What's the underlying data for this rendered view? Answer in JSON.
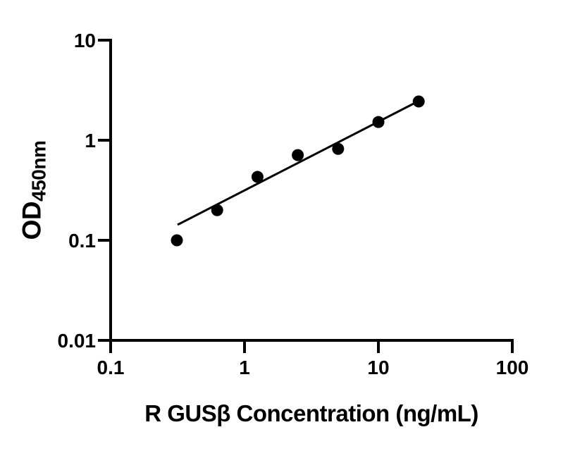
{
  "chart_data": {
    "type": "scatter",
    "title": "",
    "xlabel": "R GUSβ Concentration (ng/mL)",
    "ylabel_main": "OD",
    "ylabel_sub": "450nm",
    "x_scale": "log",
    "y_scale": "log",
    "xlim": [
      0.1,
      100
    ],
    "ylim": [
      0.01,
      10
    ],
    "x_ticks": [
      0.1,
      1,
      10,
      100
    ],
    "x_tick_labels": [
      "0.1",
      "1",
      "10",
      "100"
    ],
    "y_ticks": [
      10,
      1,
      0.1,
      0.01
    ],
    "y_tick_labels": [
      "10",
      "1",
      "0.1",
      "0.01"
    ],
    "grid": false,
    "legend": "none",
    "colors": {
      "foreground": "#000000",
      "background": "#ffffff"
    },
    "series": [
      {
        "name": "standard-curve-points",
        "marker": "filled-circle",
        "color": "#000000",
        "points": [
          {
            "x": 0.3125,
            "y": 0.1
          },
          {
            "x": 0.625,
            "y": 0.2
          },
          {
            "x": 1.25,
            "y": 0.43
          },
          {
            "x": 2.5,
            "y": 0.71
          },
          {
            "x": 5,
            "y": 0.82
          },
          {
            "x": 10,
            "y": 1.52
          },
          {
            "x": 20,
            "y": 2.44
          }
        ]
      }
    ],
    "trendline": {
      "x1": 0.316,
      "y1": 0.143,
      "x2": 19.7,
      "y2": 2.44
    }
  }
}
